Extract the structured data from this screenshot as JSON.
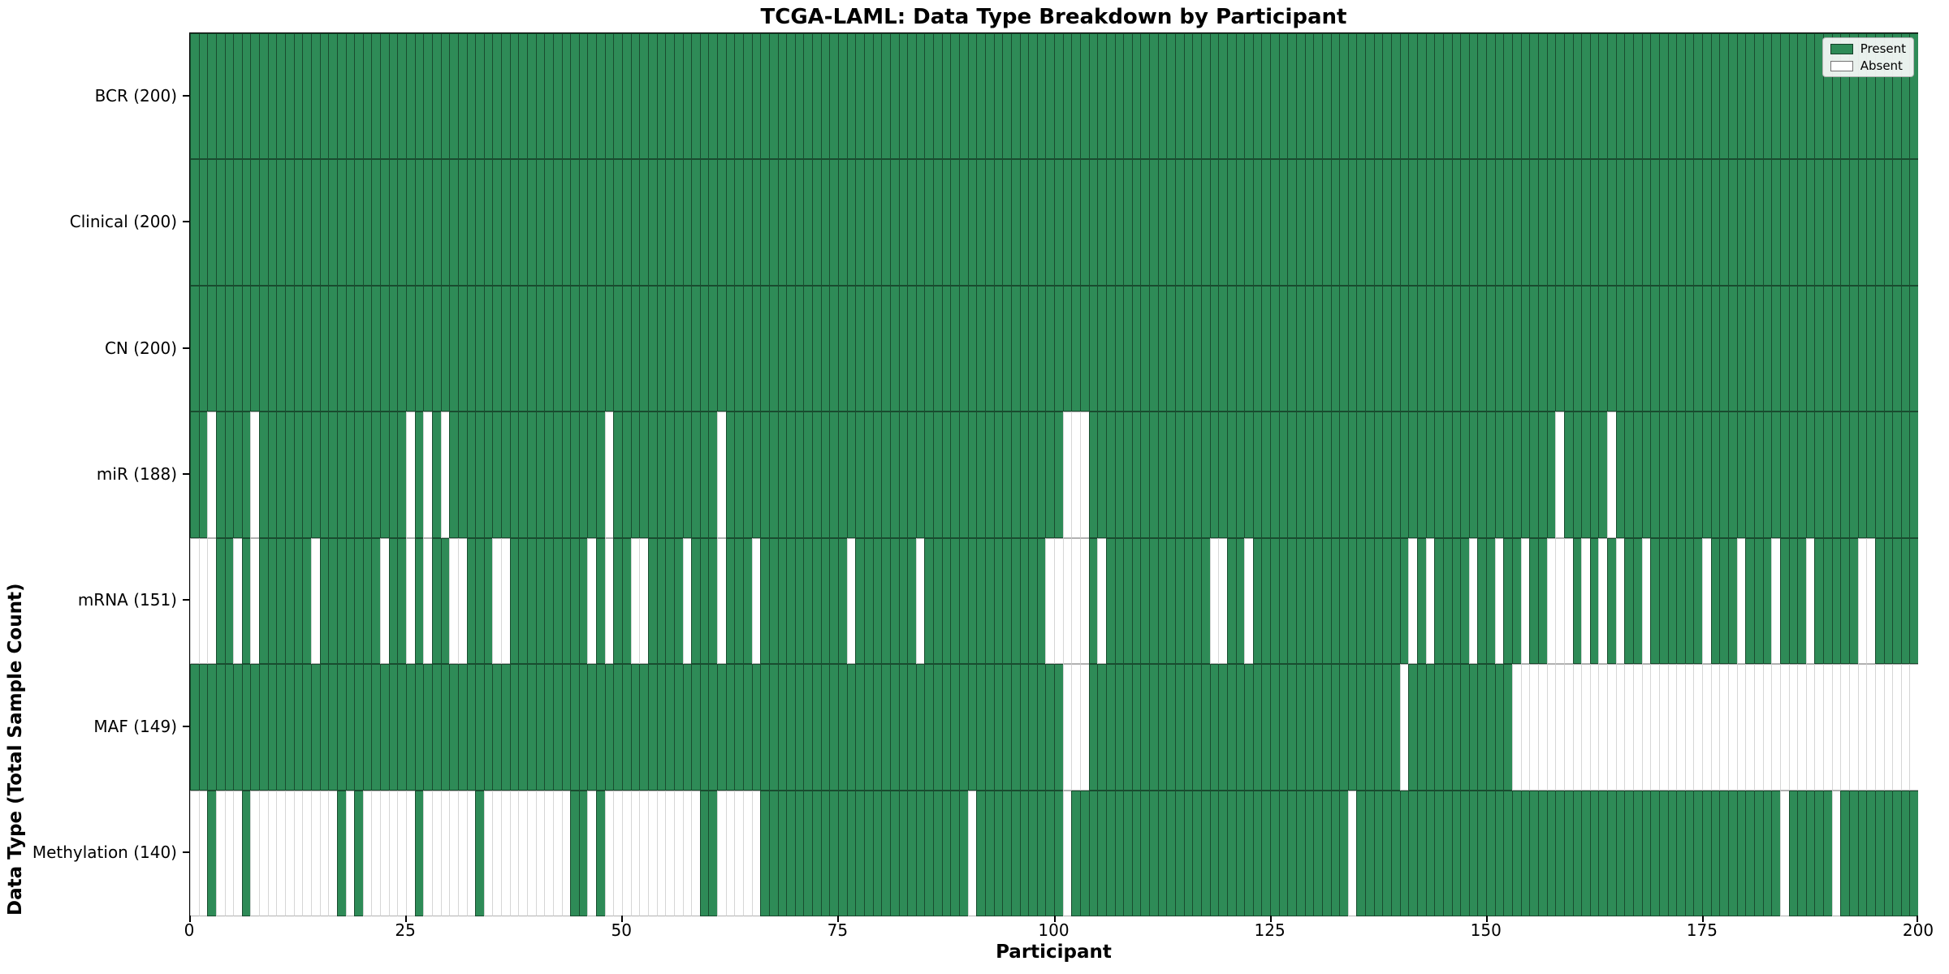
{
  "title": "TCGA-LAML: Data Type Breakdown by Participant",
  "xlabel": "Participant",
  "ylabel": "Data Type (Total Sample Count)",
  "legend": {
    "present": "Present",
    "absent": "Absent"
  },
  "colors": {
    "present": "#2e8b57",
    "absent": "#ffffff",
    "spine": "#000000",
    "legend_background": "#fafafa",
    "legend_border": "#b5b5b5"
  },
  "chart_data": {
    "type": "heatmap",
    "title": "TCGA-LAML: Data Type Breakdown by Participant",
    "xlabel": "Participant",
    "ylabel": "Data Type (Total Sample Count)",
    "x_range": [
      0,
      200
    ],
    "n_participants": 200,
    "x_ticks": [
      0,
      25,
      50,
      75,
      100,
      125,
      150,
      175,
      200
    ],
    "legend_entries": [
      "Present",
      "Absent"
    ],
    "legend_position": "upper right",
    "grid": false,
    "rows": [
      {
        "name": "BCR",
        "label": "BCR (200)",
        "present_count": 200,
        "absent_participants": []
      },
      {
        "name": "Clinical",
        "label": "Clinical (200)",
        "present_count": 200,
        "absent_participants": []
      },
      {
        "name": "CN",
        "label": "CN (200)",
        "present_count": 200,
        "absent_participants": []
      },
      {
        "name": "miR",
        "label": "miR (188)",
        "present_count": 188,
        "absent_participants": [
          2,
          7,
          25,
          27,
          29,
          48,
          61,
          101,
          102,
          103,
          158,
          164
        ]
      },
      {
        "name": "mRNA",
        "label": "mRNA (151)",
        "present_count": 151,
        "absent_participants": [
          0,
          1,
          2,
          5,
          7,
          14,
          22,
          25,
          27,
          30,
          31,
          35,
          36,
          46,
          48,
          51,
          52,
          57,
          61,
          65,
          76,
          84,
          99,
          100,
          101,
          102,
          103,
          105,
          118,
          119,
          122,
          141,
          143,
          148,
          151,
          154,
          157,
          158,
          159,
          161,
          163,
          165,
          168,
          175,
          179,
          183,
          187,
          193,
          194
        ]
      },
      {
        "name": "MAF",
        "label": "MAF (149)",
        "present_count": 149,
        "absent_participants": [
          101,
          102,
          103,
          140,
          153,
          154,
          155,
          156,
          157,
          158,
          159,
          160,
          161,
          162,
          163,
          164,
          165,
          166,
          167,
          168,
          169,
          170,
          171,
          172,
          173,
          174,
          175,
          176,
          177,
          178,
          179,
          180,
          181,
          182,
          183,
          184,
          185,
          186,
          187,
          188,
          189,
          190,
          191,
          192,
          193,
          194,
          195,
          196,
          197,
          198,
          199
        ]
      },
      {
        "name": "Methylation",
        "label": "Methylation (140)",
        "present_count": 140,
        "absent_participants": [
          0,
          1,
          3,
          4,
          5,
          7,
          8,
          9,
          10,
          11,
          12,
          13,
          14,
          15,
          16,
          18,
          20,
          21,
          22,
          23,
          24,
          25,
          27,
          28,
          29,
          30,
          31,
          32,
          34,
          35,
          36,
          37,
          38,
          39,
          40,
          41,
          42,
          43,
          46,
          48,
          49,
          50,
          51,
          52,
          53,
          54,
          55,
          56,
          57,
          58,
          61,
          62,
          63,
          64,
          65,
          90,
          101,
          134,
          184,
          190
        ]
      }
    ]
  }
}
